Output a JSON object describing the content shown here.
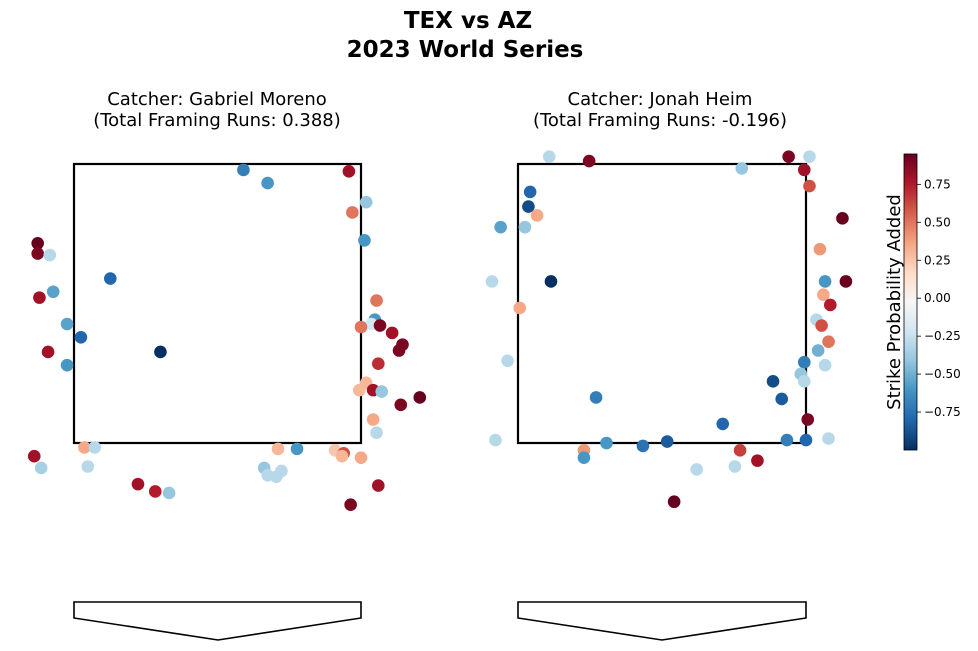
{
  "title_line1": "TEX vs AZ",
  "title_line2": "2023 World Series",
  "colorbar": {
    "label": "Strike Probability Added",
    "min": -1.0,
    "max": 0.95,
    "ticks": [
      "0.75",
      "0.50",
      "0.25",
      "0.00",
      "−0.25",
      "−0.50",
      "−0.75"
    ],
    "tick_values": [
      0.75,
      0.5,
      0.25,
      0.0,
      -0.25,
      -0.5,
      -0.75
    ],
    "colors": [
      "#053061",
      "#2166ac",
      "#4393c3",
      "#92c5de",
      "#d1e5f0",
      "#f7f7f7",
      "#fddbc7",
      "#f4a582",
      "#d6604d",
      "#b2182b",
      "#67001f"
    ]
  },
  "chart_data": [
    {
      "type": "scatter",
      "title_line1": "Catcher: Gabriel Moreno",
      "title_line2": "(Total Framing Runs: 0.388)",
      "xlim": [
        -1.2,
        1.2
      ],
      "ylim": [
        0.3,
        4.3
      ],
      "strike_zone": {
        "x": [
          -0.83,
          0.83
        ],
        "y": [
          1.5,
          3.4
        ]
      },
      "points": [
        {
          "x": 0.15,
          "y": 3.36,
          "c": -0.7
        },
        {
          "x": 0.29,
          "y": 3.27,
          "c": -0.6
        },
        {
          "x": 0.76,
          "y": 3.35,
          "c": 0.8
        },
        {
          "x": 0.78,
          "y": 3.07,
          "c": 0.5
        },
        {
          "x": 0.86,
          "y": 3.14,
          "c": -0.4
        },
        {
          "x": 0.85,
          "y": 2.88,
          "c": -0.6
        },
        {
          "x": -1.04,
          "y": 2.86,
          "c": 0.95
        },
        {
          "x": -1.04,
          "y": 2.79,
          "c": 0.9
        },
        {
          "x": -0.97,
          "y": 2.78,
          "c": -0.3
        },
        {
          "x": -0.62,
          "y": 2.62,
          "c": -0.8
        },
        {
          "x": -1.03,
          "y": 2.49,
          "c": 0.8
        },
        {
          "x": -0.95,
          "y": 2.53,
          "c": -0.55
        },
        {
          "x": -0.87,
          "y": 2.31,
          "c": -0.55
        },
        {
          "x": -0.79,
          "y": 2.22,
          "c": -0.8
        },
        {
          "x": -0.98,
          "y": 2.12,
          "c": 0.8
        },
        {
          "x": -0.87,
          "y": 2.03,
          "c": -0.6
        },
        {
          "x": -0.33,
          "y": 2.12,
          "c": -1.0
        },
        {
          "x": 0.92,
          "y": 2.47,
          "c": 0.5
        },
        {
          "x": 0.91,
          "y": 2.34,
          "c": -0.6
        },
        {
          "x": 0.89,
          "y": 2.31,
          "c": -0.2
        },
        {
          "x": 0.94,
          "y": 2.3,
          "c": 0.9
        },
        {
          "x": 0.83,
          "y": 2.29,
          "c": 0.5
        },
        {
          "x": 1.01,
          "y": 2.25,
          "c": 0.8
        },
        {
          "x": 1.07,
          "y": 2.17,
          "c": 0.9
        },
        {
          "x": 1.05,
          "y": 2.13,
          "c": 0.9
        },
        {
          "x": 0.93,
          "y": 2.04,
          "c": 0.7
        },
        {
          "x": 0.86,
          "y": 1.91,
          "c": 0.3
        },
        {
          "x": 0.82,
          "y": 1.86,
          "c": 0.3
        },
        {
          "x": 0.9,
          "y": 1.86,
          "c": 0.8
        },
        {
          "x": 0.95,
          "y": 1.85,
          "c": -0.4
        },
        {
          "x": 1.17,
          "y": 1.81,
          "c": 0.95
        },
        {
          "x": 1.06,
          "y": 1.76,
          "c": 0.9
        },
        {
          "x": 0.9,
          "y": 1.66,
          "c": 0.35
        },
        {
          "x": 0.92,
          "y": 1.57,
          "c": -0.3
        },
        {
          "x": -0.77,
          "y": 1.47,
          "c": 0.35
        },
        {
          "x": -0.71,
          "y": 1.47,
          "c": -0.3
        },
        {
          "x": 0.35,
          "y": 1.46,
          "c": 0.3
        },
        {
          "x": 0.46,
          "y": 1.46,
          "c": -0.6
        },
        {
          "x": 0.68,
          "y": 1.45,
          "c": 0.25
        },
        {
          "x": 0.73,
          "y": 1.43,
          "c": 0.6
        },
        {
          "x": 0.72,
          "y": 1.41,
          "c": 0.3
        },
        {
          "x": 0.83,
          "y": 1.4,
          "c": 0.35
        },
        {
          "x": -1.06,
          "y": 1.41,
          "c": 0.8
        },
        {
          "x": -1.02,
          "y": 1.33,
          "c": -0.35
        },
        {
          "x": -0.75,
          "y": 1.34,
          "c": -0.3
        },
        {
          "x": 0.27,
          "y": 1.33,
          "c": -0.4
        },
        {
          "x": 0.37,
          "y": 1.31,
          "c": -0.3
        },
        {
          "x": 0.29,
          "y": 1.28,
          "c": -0.3
        },
        {
          "x": 0.34,
          "y": 1.27,
          "c": -0.3
        },
        {
          "x": -0.46,
          "y": 1.22,
          "c": 0.8
        },
        {
          "x": -0.36,
          "y": 1.17,
          "c": 0.75
        },
        {
          "x": -0.28,
          "y": 1.16,
          "c": -0.4
        },
        {
          "x": 0.93,
          "y": 1.21,
          "c": 0.8
        },
        {
          "x": 0.77,
          "y": 1.08,
          "c": 0.9
        }
      ]
    },
    {
      "type": "scatter",
      "title_line1": "Catcher: Jonah Heim",
      "title_line2": "(Total Framing Runs: -0.196)",
      "xlim": [
        -1.2,
        1.2
      ],
      "ylim": [
        0.3,
        4.3
      ],
      "strike_zone": {
        "x": [
          -0.83,
          0.83
        ],
        "y": [
          1.5,
          3.4
        ]
      },
      "points": [
        {
          "x": -0.65,
          "y": 3.45,
          "c": -0.3
        },
        {
          "x": -0.42,
          "y": 3.42,
          "c": 0.9
        },
        {
          "x": 0.73,
          "y": 3.45,
          "c": 0.9
        },
        {
          "x": 0.85,
          "y": 3.45,
          "c": -0.3
        },
        {
          "x": 0.46,
          "y": 3.37,
          "c": -0.4
        },
        {
          "x": 0.82,
          "y": 3.36,
          "c": 0.8
        },
        {
          "x": 0.85,
          "y": 3.25,
          "c": 0.6
        },
        {
          "x": -0.76,
          "y": 3.21,
          "c": -0.8
        },
        {
          "x": -0.77,
          "y": 3.11,
          "c": -0.9
        },
        {
          "x": -0.93,
          "y": 2.97,
          "c": -0.55
        },
        {
          "x": -0.79,
          "y": 2.97,
          "c": -0.4
        },
        {
          "x": -0.72,
          "y": 3.05,
          "c": 0.35
        },
        {
          "x": 1.04,
          "y": 3.03,
          "c": 0.95
        },
        {
          "x": 0.91,
          "y": 2.82,
          "c": 0.4
        },
        {
          "x": -0.98,
          "y": 2.6,
          "c": -0.3
        },
        {
          "x": -0.82,
          "y": 2.42,
          "c": 0.35
        },
        {
          "x": -0.64,
          "y": 2.6,
          "c": -1.0
        },
        {
          "x": 0.94,
          "y": 2.6,
          "c": -0.6
        },
        {
          "x": 0.93,
          "y": 2.51,
          "c": 0.35
        },
        {
          "x": 0.97,
          "y": 2.44,
          "c": 0.75
        },
        {
          "x": 0.89,
          "y": 2.34,
          "c": -0.3
        },
        {
          "x": 0.92,
          "y": 2.3,
          "c": 0.6
        },
        {
          "x": 1.06,
          "y": 2.6,
          "c": 0.95
        },
        {
          "x": 0.96,
          "y": 2.19,
          "c": 0.5
        },
        {
          "x": -0.89,
          "y": 2.06,
          "c": -0.3
        },
        {
          "x": 0.9,
          "y": 2.13,
          "c": -0.5
        },
        {
          "x": 0.82,
          "y": 2.05,
          "c": -0.7
        },
        {
          "x": 0.94,
          "y": 2.03,
          "c": -0.3
        },
        {
          "x": 0.8,
          "y": 1.97,
          "c": -0.4
        },
        {
          "x": 0.82,
          "y": 1.92,
          "c": -0.3
        },
        {
          "x": 0.64,
          "y": 1.92,
          "c": -0.9
        },
        {
          "x": 0.69,
          "y": 1.8,
          "c": -0.85
        },
        {
          "x": -0.38,
          "y": 1.81,
          "c": -0.7
        },
        {
          "x": 0.84,
          "y": 1.66,
          "c": 0.9
        },
        {
          "x": -0.32,
          "y": 1.5,
          "c": -0.6
        },
        {
          "x": 0.35,
          "y": 1.63,
          "c": -0.8
        },
        {
          "x": 0.72,
          "y": 1.52,
          "c": -0.7
        },
        {
          "x": 0.83,
          "y": 1.52,
          "c": -0.8
        },
        {
          "x": 0.96,
          "y": 1.53,
          "c": -0.3
        },
        {
          "x": -0.96,
          "y": 1.52,
          "c": -0.3
        },
        {
          "x": -0.11,
          "y": 1.48,
          "c": -0.75
        },
        {
          "x": 0.03,
          "y": 1.51,
          "c": -0.85
        },
        {
          "x": -0.45,
          "y": 1.45,
          "c": 0.4
        },
        {
          "x": -0.45,
          "y": 1.4,
          "c": -0.6
        },
        {
          "x": 0.45,
          "y": 1.45,
          "c": 0.65
        },
        {
          "x": 0.55,
          "y": 1.38,
          "c": 0.8
        },
        {
          "x": 0.42,
          "y": 1.34,
          "c": -0.3
        },
        {
          "x": 0.2,
          "y": 1.32,
          "c": -0.3
        },
        {
          "x": 0.07,
          "y": 1.1,
          "c": 0.95
        }
      ]
    }
  ]
}
